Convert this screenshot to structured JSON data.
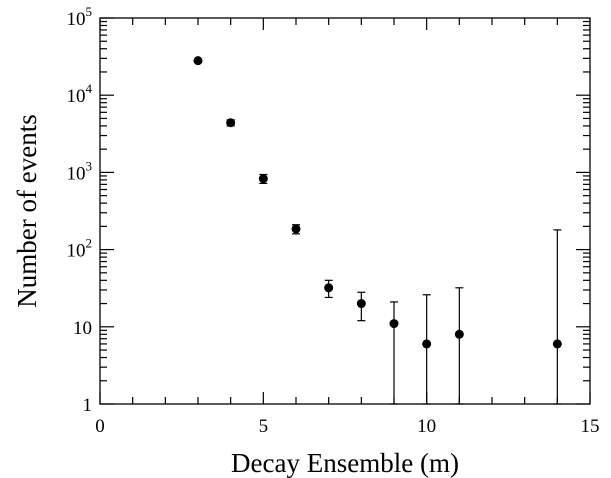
{
  "chart_data": {
    "type": "scatter",
    "xlabel": "Decay Ensemble (m)",
    "ylabel": "Number of events",
    "xlim": [
      0,
      15
    ],
    "ylim": [
      1,
      100000
    ],
    "yscale": "log",
    "grid": false,
    "x_ticks": [
      {
        "value": 0,
        "label": "0"
      },
      {
        "value": 5,
        "label": "5"
      },
      {
        "value": 10,
        "label": "10"
      },
      {
        "value": 15,
        "label": "15"
      }
    ],
    "y_ticks": [
      {
        "value": 1,
        "label": "1",
        "base": "",
        "exp": ""
      },
      {
        "value": 10,
        "label": "10",
        "base": "",
        "exp": ""
      },
      {
        "value": 100,
        "label": "",
        "base": "10",
        "exp": "2"
      },
      {
        "value": 1000,
        "label": "",
        "base": "10",
        "exp": "3"
      },
      {
        "value": 10000,
        "label": "",
        "base": "10",
        "exp": "4"
      },
      {
        "value": 100000,
        "label": "",
        "base": "10",
        "exp": "5"
      }
    ],
    "points": [
      {
        "x": 3,
        "y": 28000,
        "err_low": 27800,
        "err_high": 28200
      },
      {
        "x": 4,
        "y": 4400,
        "err_low": 4000,
        "err_high": 4800
      },
      {
        "x": 5,
        "y": 830,
        "err_low": 720,
        "err_high": 940
      },
      {
        "x": 6,
        "y": 185,
        "err_low": 160,
        "err_high": 210
      },
      {
        "x": 7,
        "y": 32,
        "err_low": 24,
        "err_high": 40
      },
      {
        "x": 8,
        "y": 20,
        "err_low": 12,
        "err_high": 28
      },
      {
        "x": 9,
        "y": 11,
        "err_low": 1,
        "err_high": 21
      },
      {
        "x": 10,
        "y": 6,
        "err_low": 1,
        "err_high": 26
      },
      {
        "x": 11,
        "y": 8,
        "err_low": 1,
        "err_high": 32
      },
      {
        "x": 14,
        "y": 6,
        "err_low": 1,
        "err_high": 180
      }
    ],
    "marker_color": "#000000"
  }
}
